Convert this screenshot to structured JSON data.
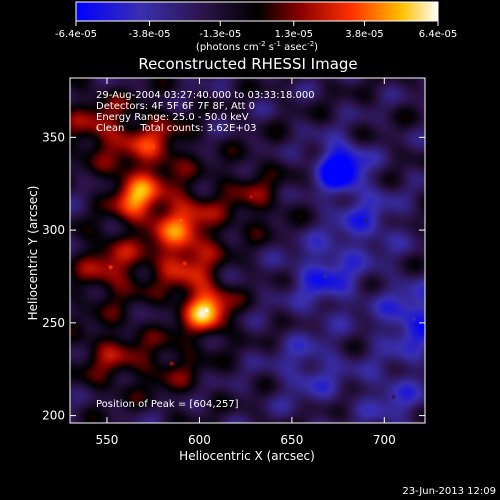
{
  "chart_data": {
    "type": "heatmap",
    "title": "Reconstructed RHESSI Image",
    "xlabel": "Heliocentric X (arcsec)",
    "ylabel": "Heliocentric Y (arcsec)",
    "xlim": [
      530,
      722
    ],
    "ylim": [
      196,
      382
    ],
    "x_ticks": [
      550,
      600,
      650,
      700
    ],
    "y_ticks": [
      200,
      250,
      300,
      350
    ],
    "colorbar": {
      "range": [
        -6.4e-05,
        6.4e-05
      ],
      "tick_labels": [
        "-6.4e-05",
        "-3.8e-05",
        "-1.3e-05",
        "1.3e-05",
        "3.8e-05",
        "6.4e-05"
      ],
      "unit_parts": [
        "(photons cm",
        "-2",
        " s",
        "-1",
        " asec",
        "-2",
        ")"
      ]
    },
    "annotations": [
      "29-Aug-2004 03:27:40.000 to 03:33:18.000",
      "Detectors: 4F 5F 6F 7F 8F, Att 0",
      "Energy Range: 25.0 - 50.0 keV",
      "Clean     Total counts: 3.62E+03"
    ],
    "peak_label": "Position of Peak = [604,257]",
    "peak": [
      604,
      257
    ],
    "footer_date": "23-Jun-2013 12:09",
    "sources": [
      {
        "x": 604,
        "y": 257,
        "value": 6.4e-05
      },
      {
        "x": 565,
        "y": 318,
        "value": 5.2e-05
      },
      {
        "x": 590,
        "y": 305,
        "value": 4e-05
      },
      {
        "x": 552,
        "y": 280,
        "value": 3.4e-05
      },
      {
        "x": 575,
        "y": 345,
        "value": 3.6e-05
      },
      {
        "x": 592,
        "y": 282,
        "value": 3.2e-05
      },
      {
        "x": 545,
        "y": 355,
        "value": 3e-05
      },
      {
        "x": 552,
        "y": 232,
        "value": 2.6e-05
      },
      {
        "x": 628,
        "y": 318,
        "value": 2.2e-05
      },
      {
        "x": 585,
        "y": 228,
        "value": 2e-05
      },
      {
        "x": 676,
        "y": 334,
        "value": -6.4e-05
      },
      {
        "x": 716,
        "y": 252,
        "value": -3.8e-05
      },
      {
        "x": 668,
        "y": 275,
        "value": -3.4e-05
      },
      {
        "x": 690,
        "y": 305,
        "value": -2.6e-05
      },
      {
        "x": 660,
        "y": 225,
        "value": -2.4e-05
      },
      {
        "x": 705,
        "y": 210,
        "value": -2.2e-05
      }
    ]
  }
}
